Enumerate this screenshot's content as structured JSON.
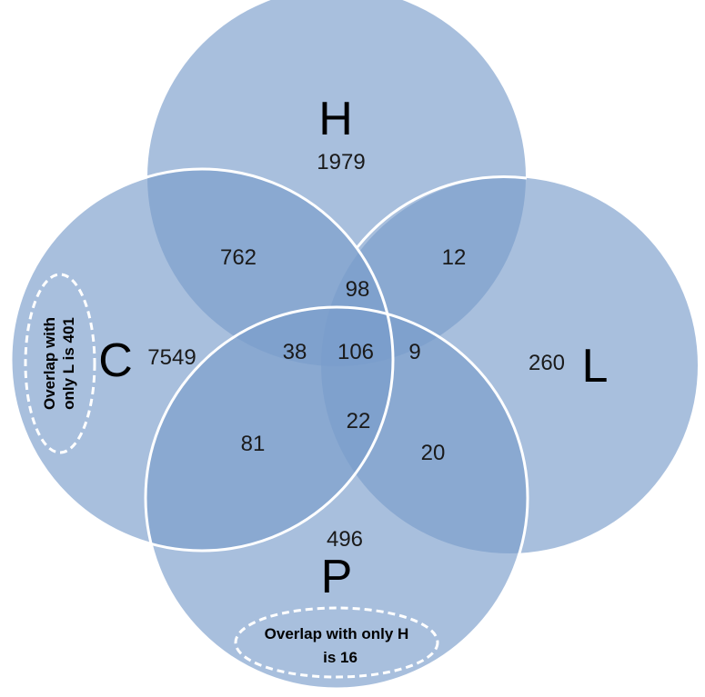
{
  "colors": {
    "set_fill": "#7a9ccb",
    "set_stroke": "#ffffff",
    "note_stroke": "#ffffff"
  },
  "sets": {
    "H": "H",
    "C": "C",
    "L": "L",
    "P": "P"
  },
  "regions": {
    "H_only": "1979",
    "C_only": "7549",
    "L_only": "260",
    "P_only": "496",
    "CH": "762",
    "HL": "12",
    "CHL": "98",
    "CHP": "38",
    "CHLP": "106",
    "HLP": "9",
    "CLP": "22",
    "CP": "81",
    "LP": "20"
  },
  "notes": {
    "c_note_line1": "Overlap with",
    "c_note_line2": "only L is 401",
    "p_note_line1": "Overlap with only H",
    "p_note_line2": "is 16"
  }
}
